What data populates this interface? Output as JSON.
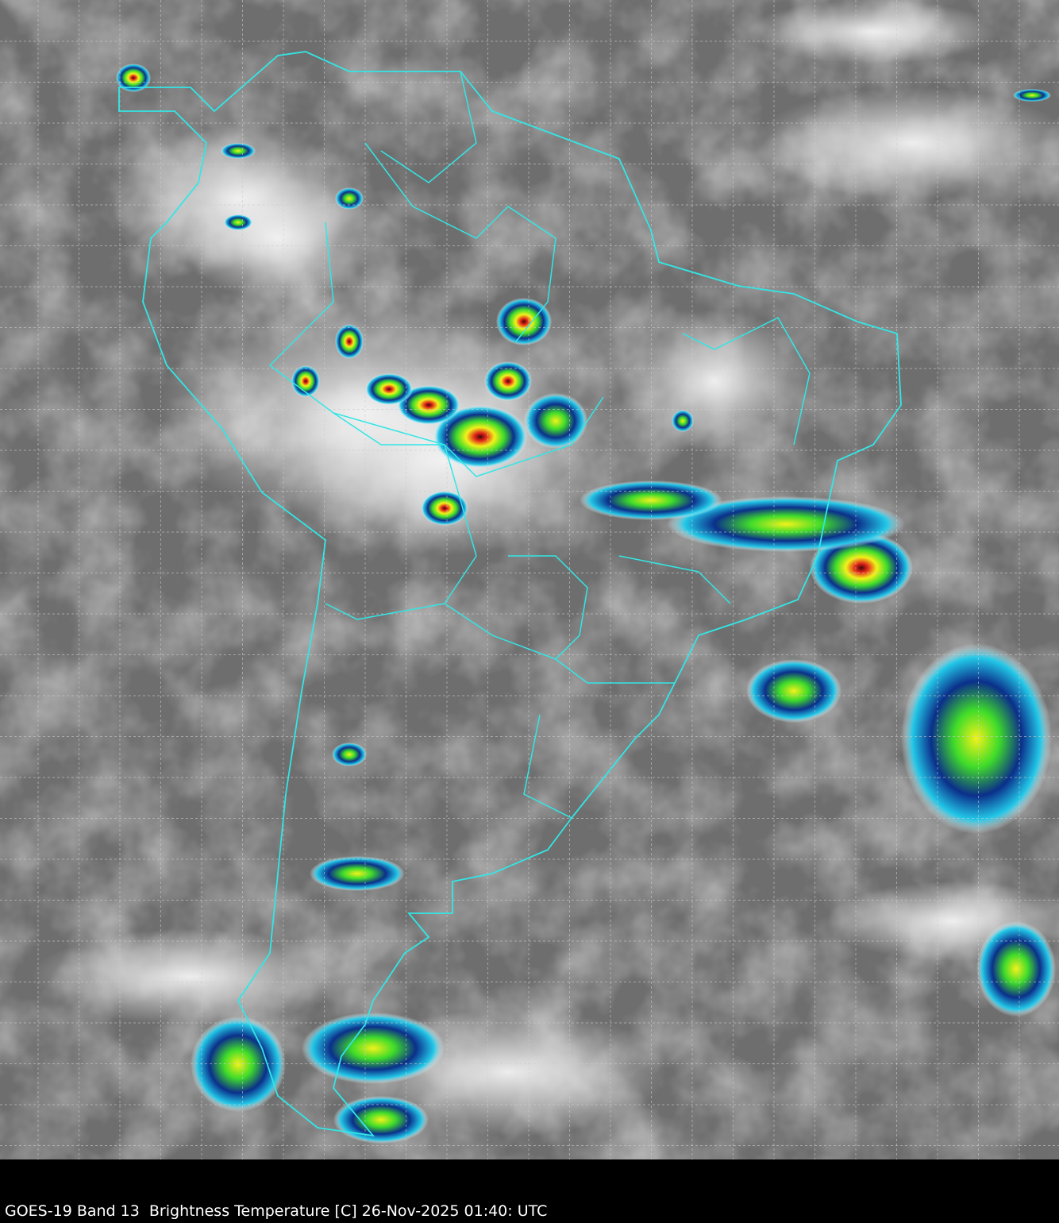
{
  "caption": "GOES-19 Band 13  Brightness Temperature [C] 26-Nov-2025 01:40: UTC",
  "map": {
    "product": "GOES-19 Band 13 Brightness Temperature",
    "region": "South America",
    "grid": true,
    "grid_style": "dashed",
    "colors": {
      "background": "#000000",
      "warm_gray": "#6e6e6e",
      "cold_white": "#f2f2f2",
      "border": "#33e6e6",
      "grid": "#cccccc",
      "convective_cyan": "#22c8e8",
      "convective_blue": "#0b2f8a",
      "convective_green": "#3fdc2a",
      "convective_yellow": "#f2f21a",
      "convective_red": "#e0221a",
      "convective_dark": "#3a0a0a"
    }
  }
}
